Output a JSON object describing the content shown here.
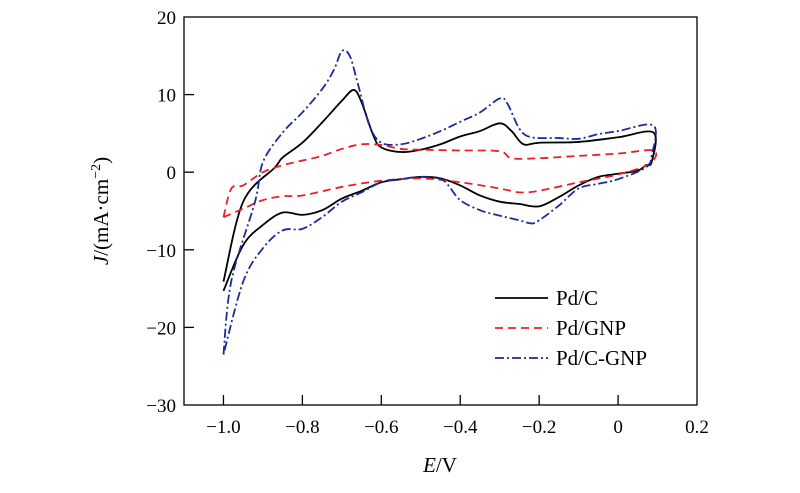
{
  "chart_data": {
    "type": "line",
    "title": "",
    "xlabel": "E/V",
    "xlabel_italic": "E",
    "xlabel_rest": "/V",
    "ylabel": "J/(mA·cm⁻²)",
    "ylabel_italic": "J",
    "ylabel_rest": "/(mA·cm",
    "ylabel_sup": "−2",
    "ylabel_close": ")",
    "xlim": [
      -1.1,
      0.2
    ],
    "ylim": [
      -30,
      20
    ],
    "xticks": [
      -1.0,
      -0.8,
      -0.6,
      -0.4,
      -0.2,
      0,
      0.2
    ],
    "xtick_labels": [
      "−1.0",
      "−0.8",
      "−0.6",
      "−0.4",
      "−0.2",
      "0",
      "0.2"
    ],
    "yticks": [
      20,
      10,
      0,
      -10,
      -20,
      -30
    ],
    "ytick_labels": [
      "20",
      "10",
      "0",
      "−10",
      "−20",
      "−30"
    ],
    "grid": false,
    "legend_position": "bottom-right",
    "series": [
      {
        "name": "Pd/C",
        "color": "#000000",
        "dash": "solid",
        "points": [
          [
            -1.0,
            -14.1
          ],
          [
            -0.95,
            -3.8
          ],
          [
            -0.87,
            0.6
          ],
          [
            -0.85,
            1.9
          ],
          [
            -0.8,
            3.8
          ],
          [
            -0.75,
            6.4
          ],
          [
            -0.7,
            9.2
          ],
          [
            -0.67,
            10.6
          ],
          [
            -0.65,
            9.0
          ],
          [
            -0.62,
            4.7
          ],
          [
            -0.6,
            3.2
          ],
          [
            -0.55,
            2.6
          ],
          [
            -0.5,
            2.9
          ],
          [
            -0.45,
            3.6
          ],
          [
            -0.4,
            4.6
          ],
          [
            -0.35,
            5.3
          ],
          [
            -0.3,
            6.3
          ],
          [
            -0.27,
            5.3
          ],
          [
            -0.24,
            3.6
          ],
          [
            -0.2,
            3.8
          ],
          [
            -0.1,
            3.9
          ],
          [
            0,
            4.5
          ],
          [
            0.09,
            5.1
          ],
          [
            0.085,
            1.3
          ],
          [
            0.07,
            0.9
          ],
          [
            0.05,
            0.2
          ],
          [
            0,
            -0.2
          ],
          [
            -0.05,
            -0.6
          ],
          [
            -0.1,
            -1.7
          ],
          [
            -0.15,
            -3.2
          ],
          [
            -0.2,
            -4.4
          ],
          [
            -0.25,
            -4.1
          ],
          [
            -0.3,
            -3.8
          ],
          [
            -0.35,
            -3.0
          ],
          [
            -0.4,
            -1.7
          ],
          [
            -0.45,
            -0.8
          ],
          [
            -0.5,
            -0.6
          ],
          [
            -0.55,
            -0.9
          ],
          [
            -0.6,
            -1.3
          ],
          [
            -0.65,
            -2.4
          ],
          [
            -0.7,
            -3.4
          ],
          [
            -0.75,
            -4.9
          ],
          [
            -0.8,
            -5.5
          ],
          [
            -0.85,
            -5.2
          ],
          [
            -0.9,
            -6.8
          ],
          [
            -0.95,
            -9.4
          ],
          [
            -1.0,
            -15.3
          ]
        ]
      },
      {
        "name": "Pd/GNP",
        "color": "#e8202a",
        "dash": "dashed",
        "points": [
          [
            -1.0,
            -5.8
          ],
          [
            -0.98,
            -2.1
          ],
          [
            -0.95,
            -1.7
          ],
          [
            -0.9,
            0.0
          ],
          [
            -0.85,
            0.9
          ],
          [
            -0.8,
            1.5
          ],
          [
            -0.75,
            2.1
          ],
          [
            -0.7,
            3.0
          ],
          [
            -0.65,
            3.6
          ],
          [
            -0.6,
            3.5
          ],
          [
            -0.55,
            3.0
          ],
          [
            -0.5,
            2.9
          ],
          [
            -0.4,
            2.8
          ],
          [
            -0.3,
            2.7
          ],
          [
            -0.27,
            1.8
          ],
          [
            -0.2,
            1.8
          ],
          [
            -0.1,
            2.1
          ],
          [
            0,
            2.4
          ],
          [
            0.09,
            2.8
          ],
          [
            0.08,
            1.1
          ],
          [
            0,
            -0.3
          ],
          [
            -0.1,
            -1.3
          ],
          [
            -0.2,
            -2.4
          ],
          [
            -0.25,
            -2.6
          ],
          [
            -0.3,
            -2.1
          ],
          [
            -0.4,
            -1.3
          ],
          [
            -0.5,
            -0.8
          ],
          [
            -0.6,
            -1.1
          ],
          [
            -0.7,
            -1.9
          ],
          [
            -0.8,
            -3.0
          ],
          [
            -0.85,
            -3.1
          ],
          [
            -0.9,
            -3.6
          ],
          [
            -0.95,
            -4.7
          ],
          [
            -1.0,
            -5.8
          ]
        ]
      },
      {
        "name": "Pd/C-GNP",
        "color": "#1c2a9c",
        "dash": "dashdot",
        "points": [
          [
            -1.0,
            -23.5
          ],
          [
            -0.98,
            -14.0
          ],
          [
            -0.92,
            -3.8
          ],
          [
            -0.9,
            1.3
          ],
          [
            -0.85,
            5.1
          ],
          [
            -0.8,
            7.7
          ],
          [
            -0.75,
            10.7
          ],
          [
            -0.72,
            13.2
          ],
          [
            -0.7,
            15.6
          ],
          [
            -0.68,
            15.0
          ],
          [
            -0.66,
            11.5
          ],
          [
            -0.63,
            6.0
          ],
          [
            -0.6,
            3.8
          ],
          [
            -0.55,
            3.6
          ],
          [
            -0.5,
            4.3
          ],
          [
            -0.45,
            5.3
          ],
          [
            -0.4,
            6.5
          ],
          [
            -0.35,
            7.7
          ],
          [
            -0.3,
            9.5
          ],
          [
            -0.28,
            8.8
          ],
          [
            -0.25,
            5.6
          ],
          [
            -0.22,
            4.5
          ],
          [
            -0.15,
            4.4
          ],
          [
            -0.1,
            4.3
          ],
          [
            -0.05,
            4.9
          ],
          [
            0,
            5.3
          ],
          [
            0.09,
            6.0
          ],
          [
            0.085,
            2.1
          ],
          [
            0.07,
            0.6
          ],
          [
            0,
            -0.9
          ],
          [
            -0.05,
            -1.5
          ],
          [
            -0.1,
            -2.1
          ],
          [
            -0.15,
            -4.3
          ],
          [
            -0.2,
            -6.2
          ],
          [
            -0.22,
            -6.6
          ],
          [
            -0.25,
            -6.2
          ],
          [
            -0.3,
            -5.6
          ],
          [
            -0.35,
            -4.9
          ],
          [
            -0.4,
            -3.6
          ],
          [
            -0.43,
            -1.7
          ],
          [
            -0.45,
            -0.9
          ],
          [
            -0.5,
            -0.6
          ],
          [
            -0.55,
            -0.9
          ],
          [
            -0.6,
            -1.3
          ],
          [
            -0.65,
            -2.6
          ],
          [
            -0.7,
            -3.8
          ],
          [
            -0.75,
            -5.8
          ],
          [
            -0.8,
            -7.3
          ],
          [
            -0.85,
            -7.5
          ],
          [
            -0.9,
            -9.8
          ],
          [
            -0.95,
            -14.1
          ],
          [
            -1.0,
            -23.5
          ]
        ]
      }
    ]
  }
}
